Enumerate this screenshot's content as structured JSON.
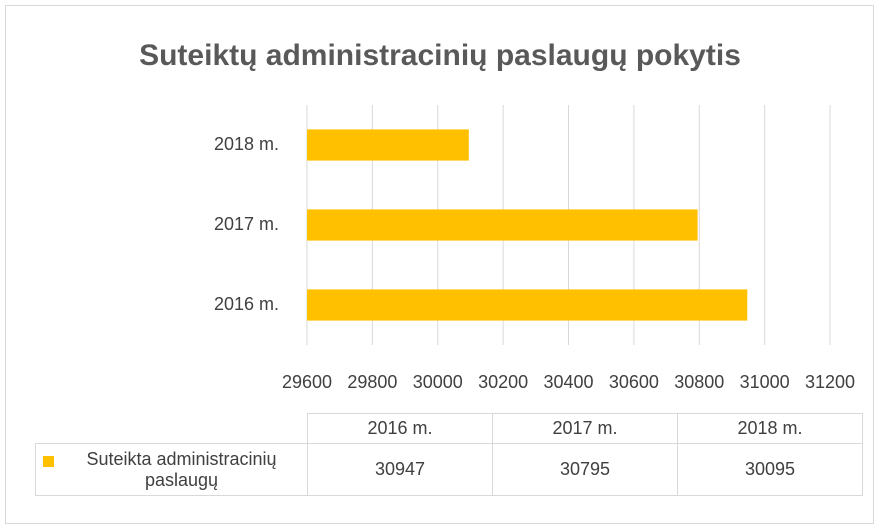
{
  "chart_data": {
    "type": "bar",
    "orientation": "horizontal",
    "title": "Suteiktų administracinių paslaugų pokytis",
    "categories": [
      "2016 m.",
      "2017 m.",
      "2018 m."
    ],
    "series": [
      {
        "name": "Suteikta administracinių paslaugų",
        "color": "#ffc000",
        "values": [
          30947,
          30795,
          30095
        ]
      }
    ],
    "xlim": [
      29600,
      31200
    ],
    "xticks": [
      29600,
      29800,
      30000,
      30200,
      30400,
      30600,
      30800,
      31000,
      31200
    ],
    "grid": true,
    "data_table": true
  }
}
